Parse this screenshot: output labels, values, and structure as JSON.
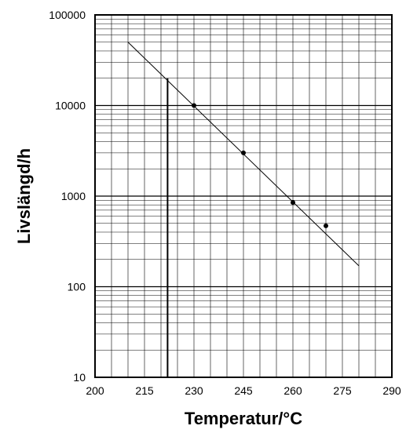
{
  "chart_data": {
    "type": "scatter",
    "title": "",
    "xlabel": "Temperatur/°C",
    "ylabel": "Livslängd/h",
    "xlim": [
      200,
      290
    ],
    "ylim": [
      10,
      100000
    ],
    "yscale": "log",
    "grid": true,
    "x_ticks": [
      200,
      215,
      230,
      245,
      260,
      275,
      290
    ],
    "x_tick_labels": [
      "200",
      "215",
      "230",
      "245",
      "260",
      "275",
      "290"
    ],
    "y_ticks": [
      10,
      100,
      1000,
      10000,
      100000
    ],
    "y_tick_labels": [
      "10",
      "100",
      "1000",
      "10000",
      "100000"
    ],
    "points": [
      {
        "x": 230,
        "y": 10000
      },
      {
        "x": 245,
        "y": 3000
      },
      {
        "x": 260,
        "y": 850
      },
      {
        "x": 270,
        "y": 470
      }
    ],
    "trend_line": [
      {
        "x": 210,
        "y": 50000
      },
      {
        "x": 280,
        "y": 170
      }
    ],
    "vertical_marker": {
      "x": 222,
      "y_from": 10,
      "y_to": 20000
    }
  }
}
